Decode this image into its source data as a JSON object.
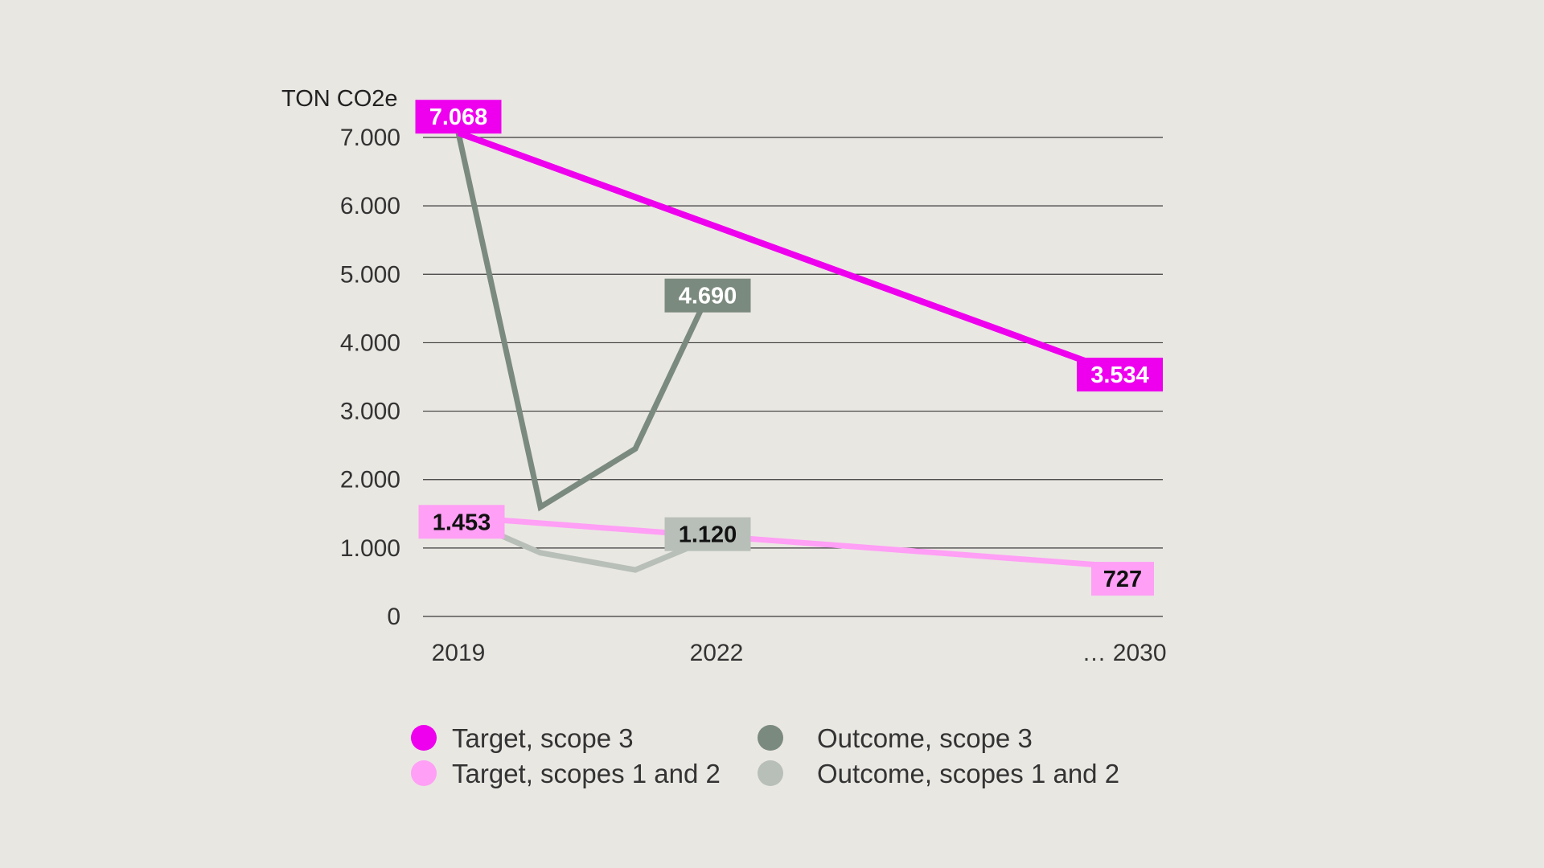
{
  "chart_data": {
    "type": "line",
    "title": "",
    "ylabel": "TON CO2e",
    "xlabel": "",
    "ylim": [
      0,
      7000
    ],
    "y_ticks": [
      {
        "value": 0,
        "label": "0"
      },
      {
        "value": 1000,
        "label": "1.000"
      },
      {
        "value": 2000,
        "label": "2.000"
      },
      {
        "value": 3000,
        "label": "3.000"
      },
      {
        "value": 4000,
        "label": "4.000"
      },
      {
        "value": 5000,
        "label": "5.000"
      },
      {
        "value": 6000,
        "label": "6.000"
      },
      {
        "value": 7000,
        "label": "7.000"
      }
    ],
    "x_range": [
      2019,
      2030
    ],
    "x_ticks": [
      {
        "value": 2019,
        "label": "2019"
      },
      {
        "value": 2022,
        "label": "2022"
      },
      {
        "value": 2030,
        "label": "… 2030"
      }
    ],
    "series": [
      {
        "id": "target-scope-3",
        "name": "Target, scope 3",
        "color": "#ee00ee",
        "text_color": "#ffffff",
        "x": [
          2019,
          2030
        ],
        "values": [
          7068,
          3534
        ],
        "labels": [
          {
            "index": 0,
            "text": "7.068"
          },
          {
            "index": 1,
            "text": "3.534"
          }
        ]
      },
      {
        "id": "outcome-scope-3",
        "name": "Outcome, scope 3",
        "color": "#7b8a7e",
        "text_color": "#ffffff",
        "x": [
          2019,
          2020,
          2021,
          2022
        ],
        "values": [
          7068,
          1600,
          2450,
          4690
        ],
        "labels": [
          {
            "index": 3,
            "text": "4.690"
          }
        ]
      },
      {
        "id": "target-scopes-1-2",
        "name": "Target, scopes 1 and 2",
        "color": "#ff9ff5",
        "text_color": "#111111",
        "x": [
          2019,
          2030
        ],
        "values": [
          1453,
          727
        ],
        "labels": [
          {
            "index": 0,
            "text": "1.453"
          },
          {
            "index": 1,
            "text": "727"
          }
        ]
      },
      {
        "id": "outcome-scopes-1-2",
        "name": "Outcome, scopes 1 and 2",
        "color": "#b7bfb8",
        "text_color": "#111111",
        "x": [
          2019,
          2020,
          2021,
          2022
        ],
        "values": [
          1453,
          930,
          680,
          1120
        ],
        "labels": [
          {
            "index": 3,
            "text": "1.120"
          }
        ]
      }
    ],
    "legend": {
      "position": "bottom",
      "columns": [
        [
          "target-scope-3",
          "target-scopes-1-2"
        ],
        [
          "outcome-scope-3",
          "outcome-scopes-1-2"
        ]
      ]
    },
    "grid": true
  }
}
